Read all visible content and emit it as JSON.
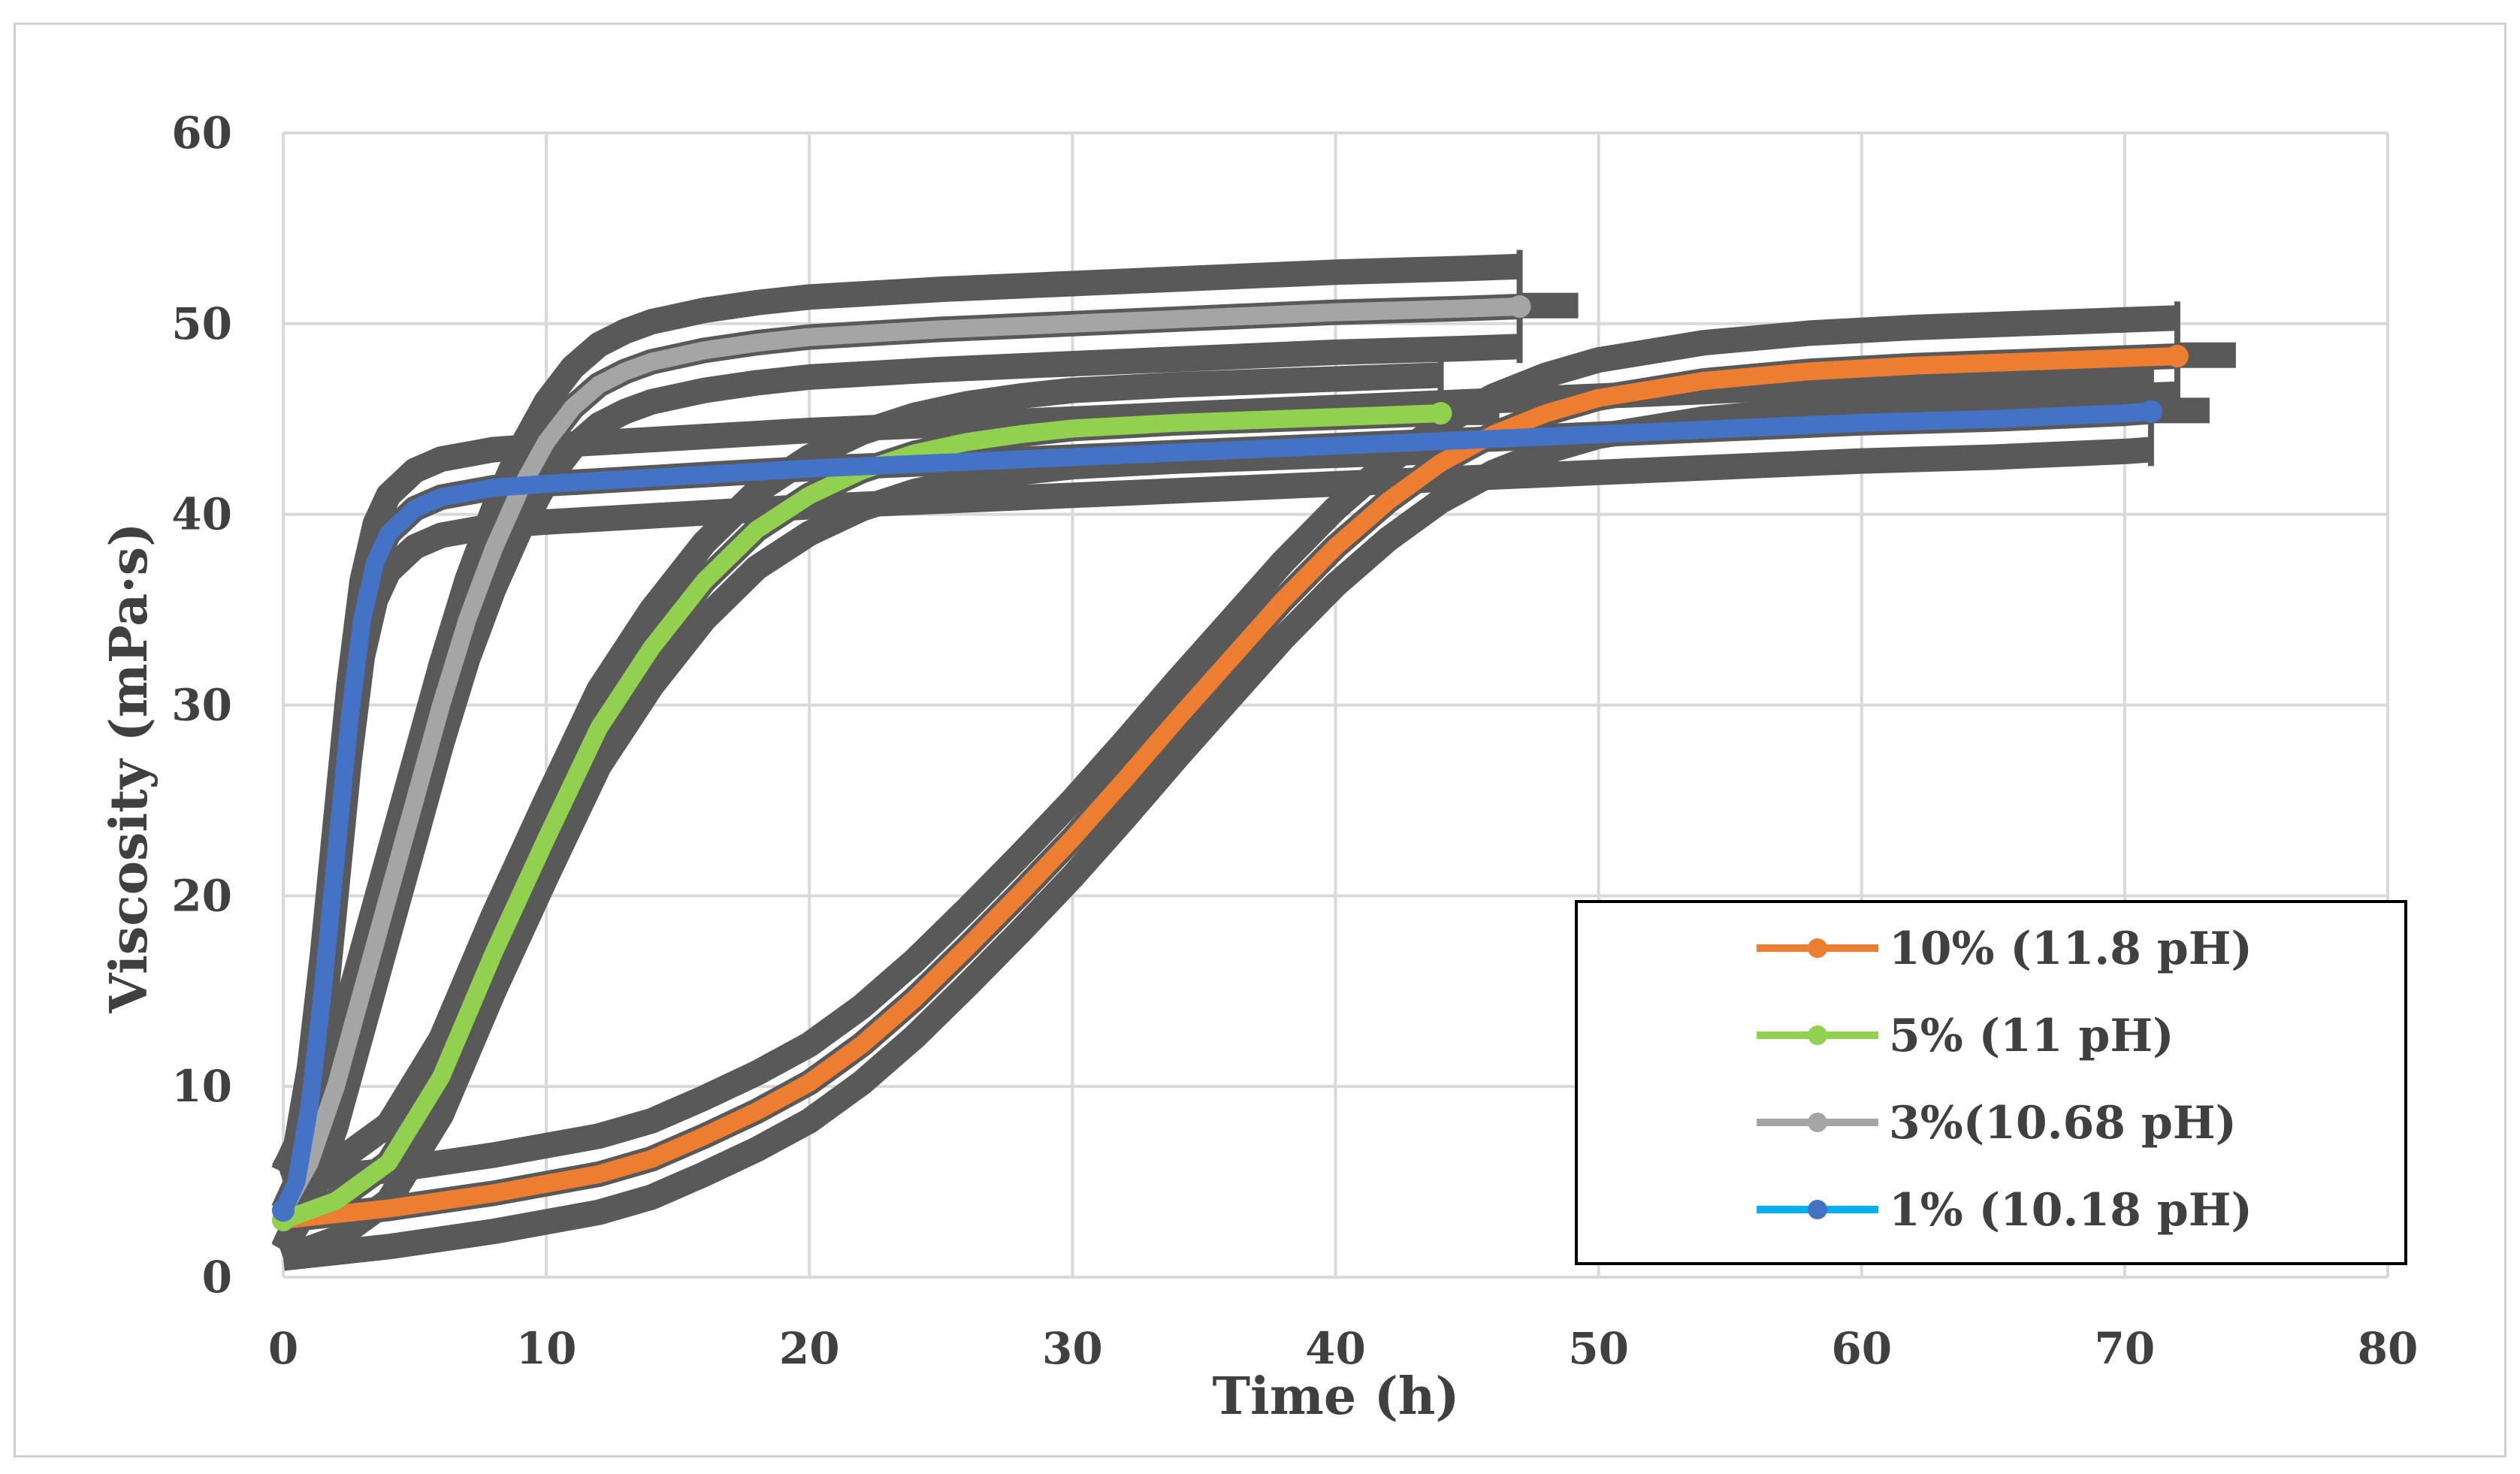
{
  "chart_data": {
    "type": "line",
    "title": "",
    "xlabel": "Time (h)",
    "ylabel": "Viscosity (mPa·s)",
    "xlim": [
      0,
      80
    ],
    "ylim": [
      0,
      60
    ],
    "xticks": [
      0,
      10,
      20,
      30,
      40,
      50,
      60,
      70,
      80
    ],
    "yticks": [
      0,
      10,
      20,
      30,
      40,
      50,
      60
    ],
    "grid": true,
    "legend_position": "bottom-right",
    "error_band_color": "#595959",
    "series": [
      {
        "name": "10% (11.8 pH)",
        "color": "#ED7D31",
        "marker": "circle",
        "error_halfwidth": 2.0,
        "end_cap": 72,
        "x": [
          0,
          4,
          8,
          12,
          14,
          16,
          18,
          20,
          22,
          24,
          26,
          28,
          30,
          32,
          34,
          36,
          38,
          40,
          42,
          44,
          46,
          48,
          50,
          54,
          58,
          62,
          66,
          70,
          72
        ],
        "y": [
          3.0,
          3.6,
          4.4,
          5.4,
          6.2,
          7.4,
          8.7,
          10.2,
          12.2,
          14.6,
          17.3,
          20.1,
          23.0,
          26.1,
          29.3,
          32.4,
          35.5,
          38.3,
          40.7,
          42.7,
          44.2,
          45.3,
          46.1,
          47.0,
          47.5,
          47.8,
          48.0,
          48.2,
          48.3
        ]
      },
      {
        "name": "5% (11 pH)",
        "color": "#92D050",
        "marker": "circle",
        "error_halfwidth": 2.0,
        "end_cap": 44,
        "x": [
          0,
          2,
          4,
          6,
          8,
          10,
          12,
          14,
          16,
          18,
          20,
          22,
          24,
          26,
          28,
          30,
          34,
          38,
          42,
          44
        ],
        "y": [
          3.0,
          4.0,
          6.0,
          10.5,
          17.0,
          23.0,
          28.8,
          33.0,
          36.5,
          39.2,
          41.0,
          42.3,
          43.2,
          43.8,
          44.2,
          44.5,
          44.8,
          45.0,
          45.2,
          45.3
        ]
      },
      {
        "name": "3%(10.68 pH)",
        "color": "#A5A5A5",
        "marker": "circle",
        "error_halfwidth": 2.1,
        "end_cap": 47,
        "x": [
          0,
          1,
          2,
          3,
          4,
          5,
          6,
          7,
          8,
          9,
          10,
          11,
          12,
          13,
          14,
          16,
          18,
          20,
          25,
          30,
          35,
          40,
          45,
          47
        ],
        "y": [
          3.5,
          6.0,
          10.0,
          15.0,
          20.0,
          25.0,
          30.0,
          34.5,
          38.2,
          41.3,
          43.8,
          45.6,
          46.8,
          47.5,
          48.0,
          48.6,
          49.0,
          49.3,
          49.7,
          50.0,
          50.3,
          50.6,
          50.8,
          50.9
        ]
      },
      {
        "name": "1% (10.18 pH)",
        "color": "#4472C4",
        "legend_color": "#00B0F0",
        "marker": "circle",
        "error_halfwidth": 2.0,
        "end_cap": 71,
        "x": [
          0,
          0.5,
          1,
          1.5,
          2,
          2.5,
          3,
          3.5,
          4,
          5,
          6,
          8,
          10,
          15,
          20,
          25,
          30,
          35,
          40,
          45,
          50,
          55,
          60,
          65,
          70,
          71
        ],
        "y": [
          3.5,
          5.0,
          9.0,
          15.0,
          22.0,
          29.0,
          34.5,
          37.5,
          39.0,
          40.3,
          40.9,
          41.4,
          41.6,
          42.0,
          42.4,
          42.7,
          43.0,
          43.3,
          43.6,
          43.9,
          44.2,
          44.5,
          44.8,
          45.0,
          45.3,
          45.4
        ]
      }
    ]
  }
}
